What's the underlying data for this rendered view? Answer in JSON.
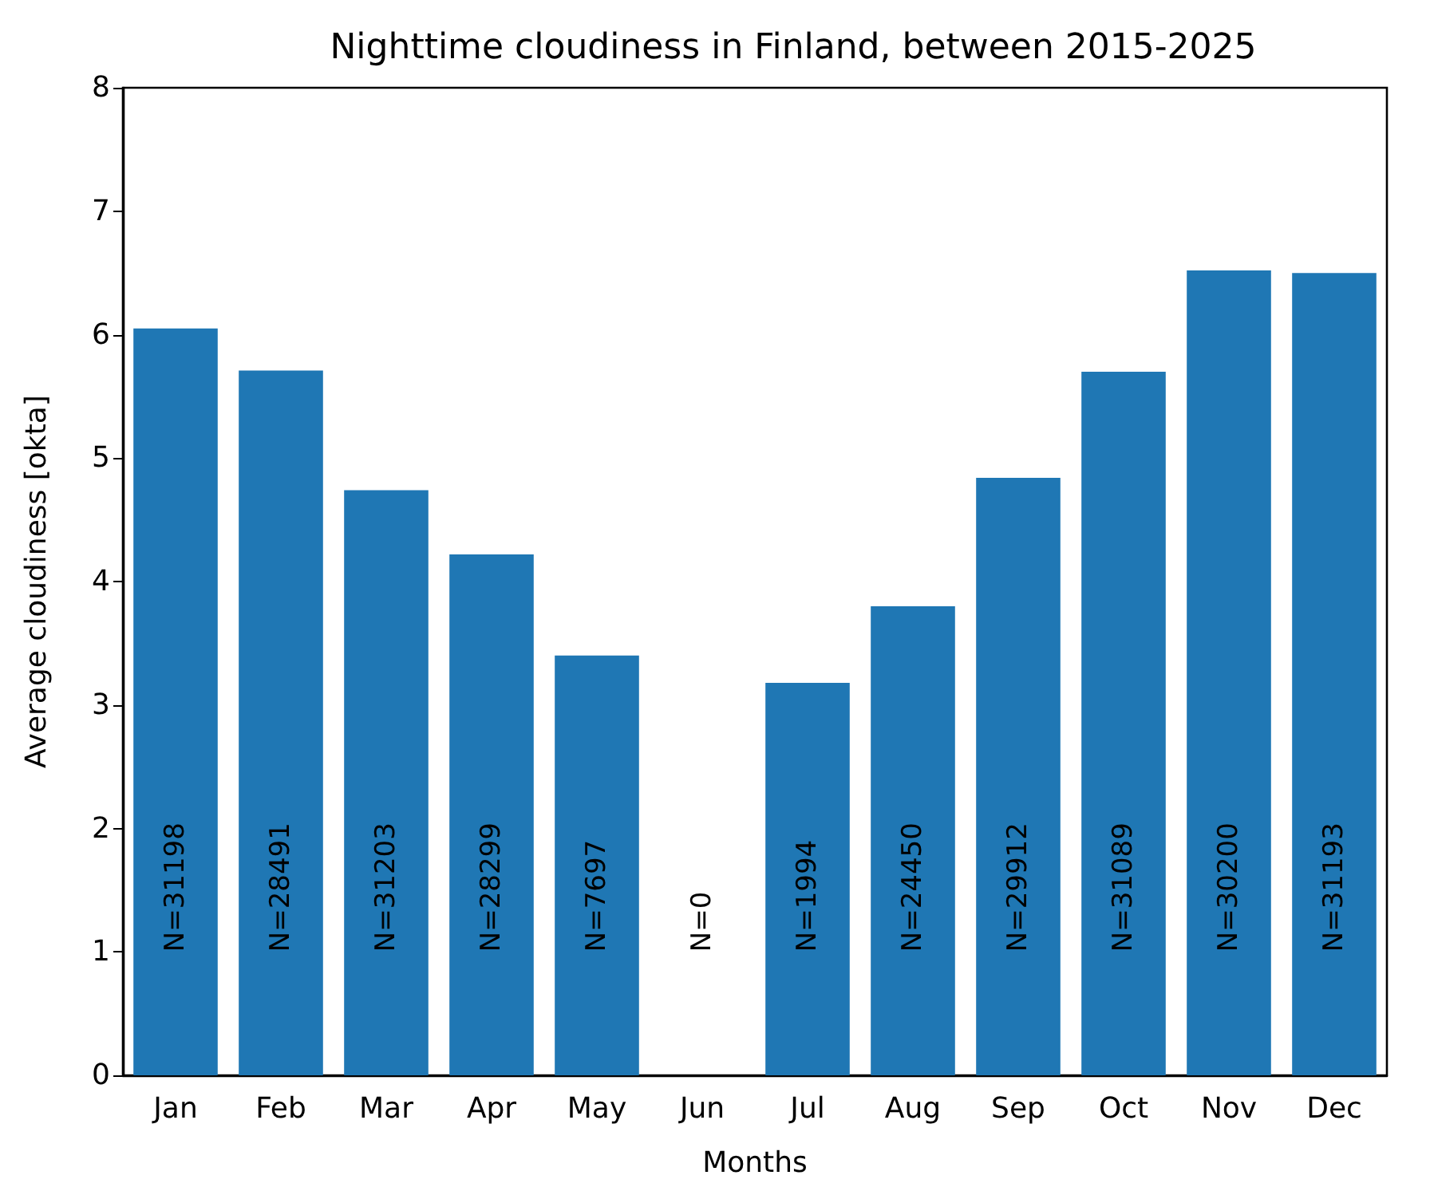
{
  "chart_data": {
    "type": "bar",
    "title": "Nighttime cloudiness in Finland, between 2015-2025",
    "xlabel": "Months",
    "ylabel": "Average cloudiness [okta]",
    "categories": [
      "Jan",
      "Feb",
      "Mar",
      "Apr",
      "May",
      "Jun",
      "Jul",
      "Aug",
      "Sep",
      "Oct",
      "Nov",
      "Dec"
    ],
    "values": [
      6.05,
      5.71,
      4.74,
      4.22,
      3.4,
      null,
      3.18,
      3.8,
      4.84,
      5.7,
      6.52,
      6.5
    ],
    "color": "#1f77b4",
    "ylim": [
      0,
      8
    ],
    "yticks": [
      0,
      1,
      2,
      3,
      4,
      5,
      6,
      7,
      8
    ],
    "grid": false,
    "annotations": [
      "N=31198",
      "N=28491",
      "N=31203",
      "N=28299",
      "N=7697",
      "N=0",
      "N=1994",
      "N=24450",
      "N=29912",
      "N=31089",
      "N=30200",
      "N=31193"
    ]
  }
}
